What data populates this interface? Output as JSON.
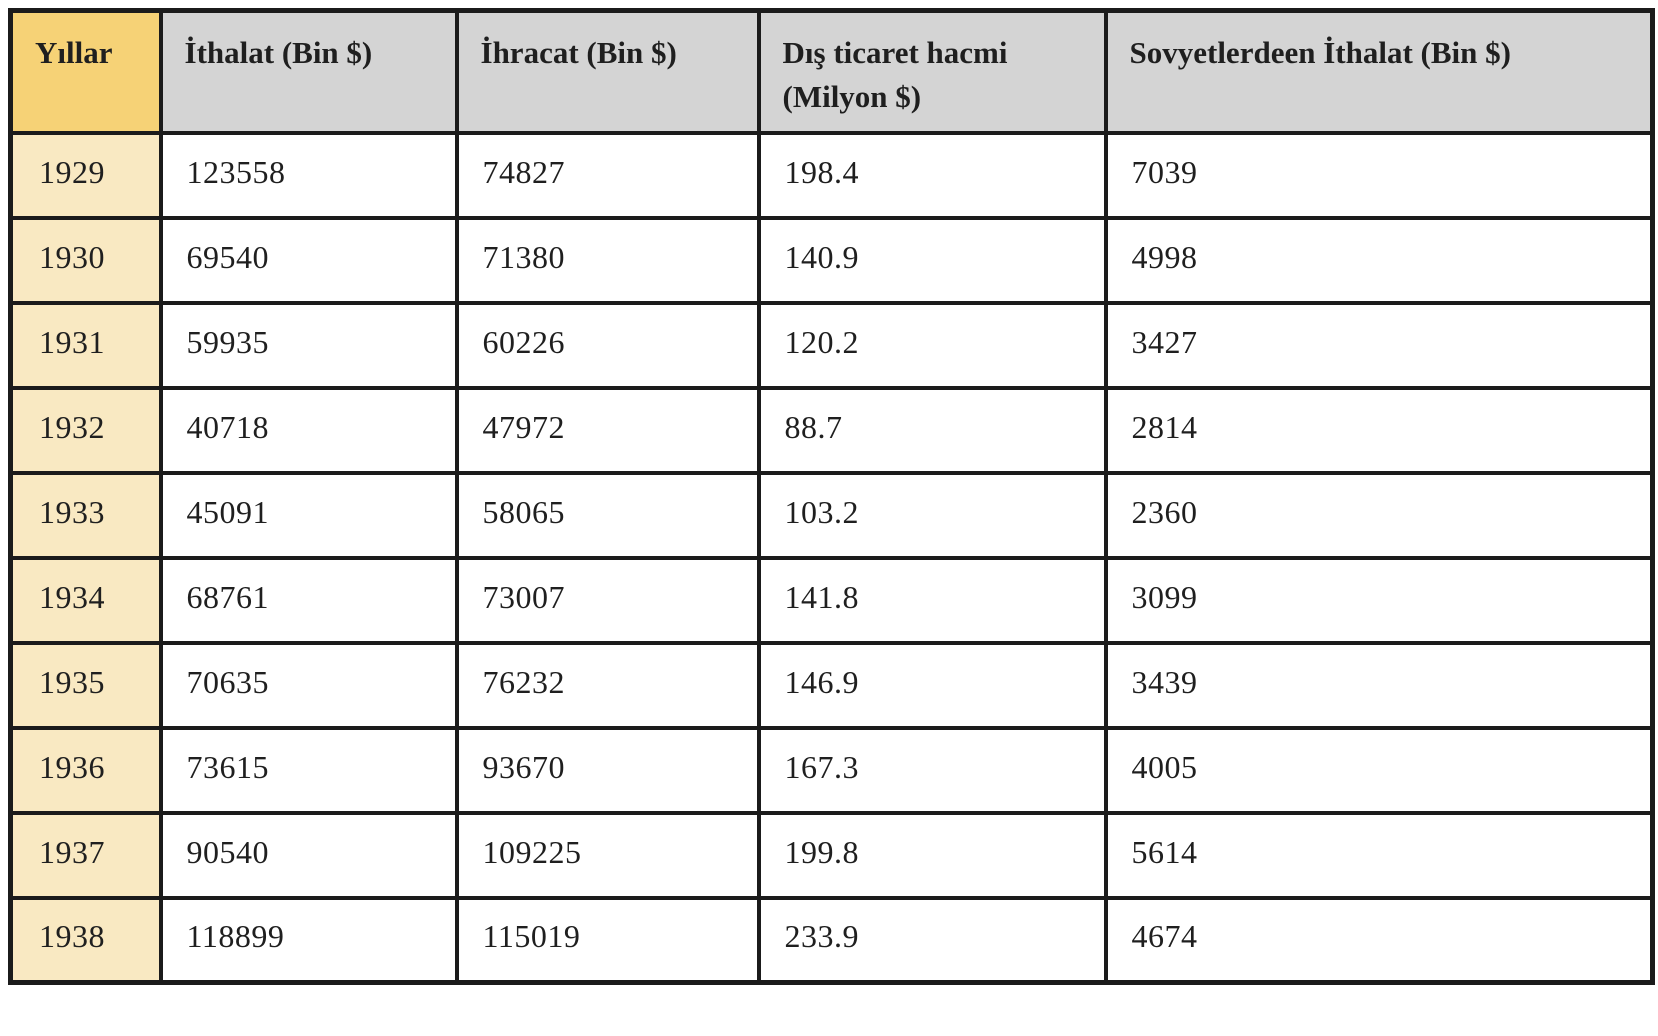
{
  "table": {
    "columns": [
      "Yıllar",
      "İthalat (Bin $)",
      "İhracat (Bin $)",
      "Dış ticaret hacmi (Milyon $)",
      "Sovyetlerdeen İthalat (Bin $)"
    ],
    "rows": [
      [
        "1929",
        "123558",
        "74827",
        "198.4",
        "7039"
      ],
      [
        "1930",
        "69540",
        "71380",
        "140.9",
        "4998"
      ],
      [
        "1931",
        "59935",
        "60226",
        "120.2",
        "3427"
      ],
      [
        "1932",
        "40718",
        "47972",
        "88.7",
        "2814"
      ],
      [
        "1933",
        "45091",
        "58065",
        "103.2",
        "2360"
      ],
      [
        "1934",
        "68761",
        "73007",
        "141.8",
        "3099"
      ],
      [
        "1935",
        "70635",
        "76232",
        "146.9",
        "3439"
      ],
      [
        "1936",
        "73615",
        "93670",
        "167.3",
        "4005"
      ],
      [
        "1937",
        "90540",
        "109225",
        "199.8",
        "5614"
      ],
      [
        "1938",
        "118899",
        "115019",
        "233.9",
        "4674"
      ]
    ]
  },
  "chart_data": {
    "type": "table",
    "categories": [
      "1929",
      "1930",
      "1931",
      "1932",
      "1933",
      "1934",
      "1935",
      "1936",
      "1937",
      "1938"
    ],
    "series": [
      {
        "name": "İthalat (Bin $)",
        "values": [
          123558,
          69540,
          59935,
          40718,
          45091,
          68761,
          70635,
          73615,
          90540,
          118899
        ]
      },
      {
        "name": "İhracat (Bin $)",
        "values": [
          74827,
          71380,
          60226,
          47972,
          58065,
          73007,
          76232,
          93670,
          109225,
          115019
        ]
      },
      {
        "name": "Dış ticaret hacmi (Milyon $)",
        "values": [
          198.4,
          140.9,
          120.2,
          88.7,
          103.2,
          141.8,
          146.9,
          167.3,
          199.8,
          233.9
        ]
      },
      {
        "name": "Sovyetlerdeen İthalat (Bin $)",
        "values": [
          7039,
          4998,
          3427,
          2814,
          2360,
          3099,
          3439,
          4005,
          5614,
          4674
        ]
      }
    ],
    "title": ""
  },
  "colors": {
    "year_header_bg": "#f6d276",
    "year_cell_bg": "#f9e9c2",
    "header_bg": "#d4d4d4",
    "cell_bg": "#ffffff",
    "border": "#1b1b1b",
    "text": "#1f1f1f"
  }
}
